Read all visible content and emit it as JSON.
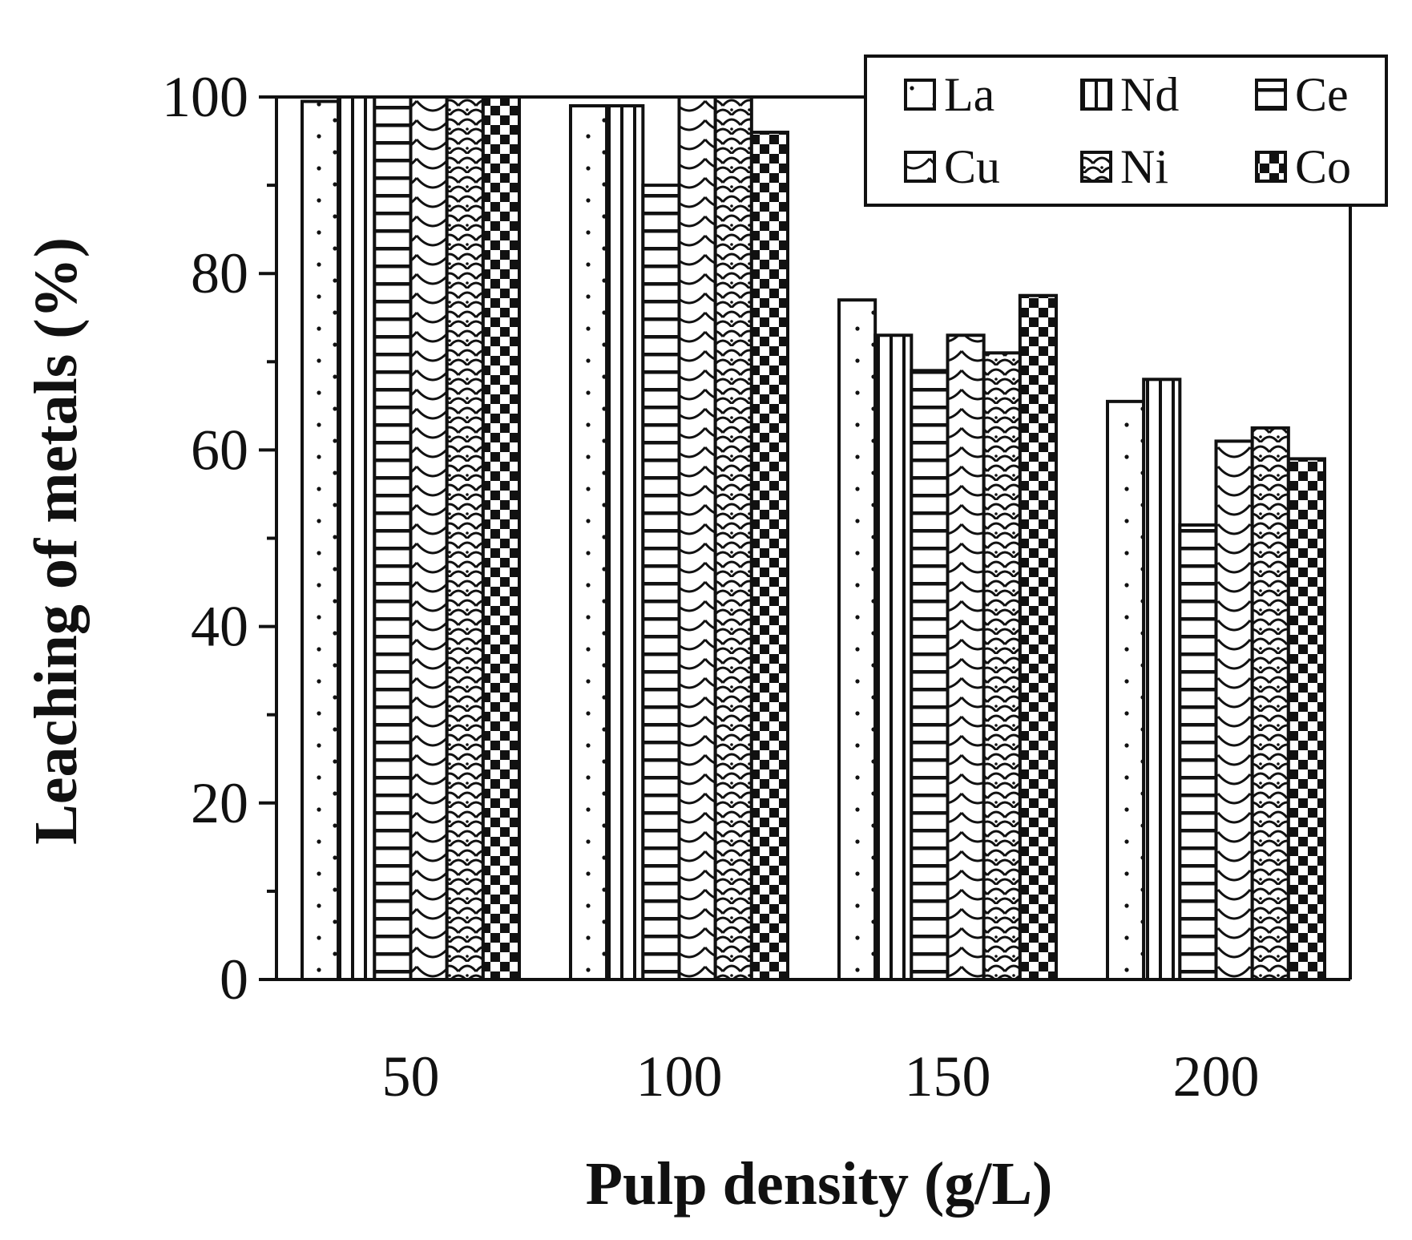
{
  "chart_data": {
    "type": "bar",
    "title": "",
    "xlabel": "Pulp density (g/L)",
    "ylabel": "Leaching of metals (%)",
    "categories": [
      "50",
      "100",
      "150",
      "200"
    ],
    "ylim": [
      0,
      100
    ],
    "yticks": [
      0,
      20,
      40,
      60,
      80,
      100
    ],
    "grid": false,
    "legend_position": "top-right",
    "series": [
      {
        "name": "La",
        "pattern": "dots",
        "values": [
          99.5,
          99.0,
          77.0,
          65.5
        ]
      },
      {
        "name": "Nd",
        "pattern": "vertical-lines",
        "values": [
          100.0,
          99.0,
          73.0,
          68.0
        ]
      },
      {
        "name": "Ce",
        "pattern": "horizontal-lines",
        "values": [
          100.0,
          90.0,
          69.0,
          51.5
        ]
      },
      {
        "name": "Cu",
        "pattern": "waves",
        "values": [
          100.0,
          100.0,
          73.0,
          61.0
        ]
      },
      {
        "name": "Ni",
        "pattern": "scales",
        "values": [
          100.0,
          100.0,
          71.0,
          62.5
        ]
      },
      {
        "name": "Co",
        "pattern": "checkerboard",
        "values": [
          100.0,
          96.0,
          77.5,
          59.0
        ]
      }
    ]
  }
}
